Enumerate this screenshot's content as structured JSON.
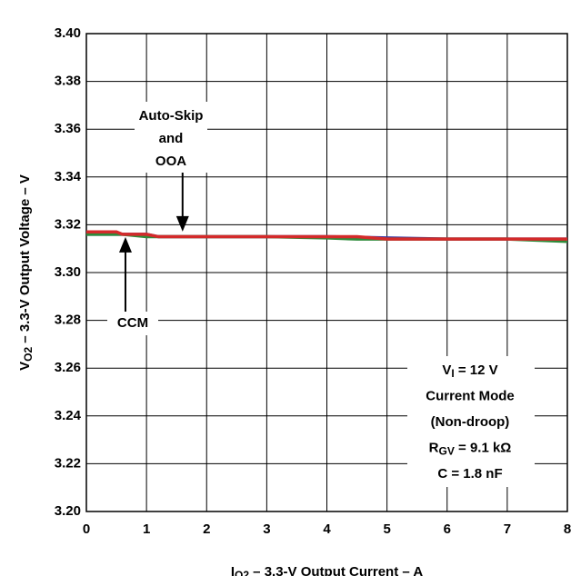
{
  "chart_data": {
    "type": "line",
    "y_label": [
      {
        "text": "V"
      },
      {
        "text": "O2",
        "sub": true
      },
      {
        "text": " – 3.3-V Output Voltage – V"
      }
    ],
    "x_label": [
      {
        "text": "I"
      },
      {
        "text": "O2",
        "sub": true
      },
      {
        "text": " – 3.3-V Output Current – A"
      }
    ],
    "x": [
      0,
      0.5,
      0.6,
      1,
      1.2,
      1.5,
      2,
      3,
      4,
      4.5,
      5,
      6,
      7,
      8
    ],
    "series": [
      {
        "color": "#3a3aa8",
        "values": [
          3.316,
          3.316,
          3.316,
          3.316,
          3.315,
          3.315,
          3.315,
          3.315,
          3.315,
          3.3148,
          3.3145,
          3.314,
          3.314,
          3.314
        ]
      },
      {
        "color": "#2e8b3a",
        "values": [
          3.316,
          3.316,
          3.316,
          3.315,
          3.315,
          3.315,
          3.315,
          3.315,
          3.3145,
          3.314,
          3.314,
          3.314,
          3.314,
          3.313
        ]
      },
      {
        "color": "#d42a2a",
        "values": [
          3.317,
          3.317,
          3.316,
          3.316,
          3.315,
          3.315,
          3.315,
          3.315,
          3.315,
          3.315,
          3.314,
          3.314,
          3.314,
          3.314
        ]
      }
    ],
    "xlim": [
      0,
      8
    ],
    "xticks": [
      0,
      1,
      2,
      3,
      4,
      5,
      6,
      7,
      8
    ],
    "ylim": [
      3.2,
      3.4
    ],
    "yticks": [
      {
        "value": 3.2,
        "label": "3.20"
      },
      {
        "value": 3.22,
        "label": "3.22"
      },
      {
        "value": 3.24,
        "label": "3.24"
      },
      {
        "value": 3.26,
        "label": "3.26"
      },
      {
        "value": 3.28,
        "label": "3.28"
      },
      {
        "value": 3.3,
        "label": "3.30"
      },
      {
        "value": 3.32,
        "label": "3.32"
      },
      {
        "value": 3.34,
        "label": "3.34"
      },
      {
        "value": 3.36,
        "label": "3.36"
      },
      {
        "value": 3.38,
        "label": "3.38"
      },
      {
        "value": 3.4,
        "label": "3.40"
      }
    ],
    "grid": true,
    "annotations": [
      {
        "lines": [
          [
            {
              "text": "Auto-Skip"
            }
          ],
          [
            {
              "text": "and"
            }
          ],
          [
            {
              "text": "OOA"
            }
          ]
        ],
        "x": 1.6,
        "y": 3.316
      },
      {
        "lines": [
          [
            {
              "text": "CCM"
            }
          ]
        ],
        "x": 0.65,
        "y": 3.316
      }
    ],
    "conditions": [
      [
        {
          "text": "V"
        },
        {
          "text": "I",
          "sub": true
        },
        {
          "text": " = 12 V"
        }
      ],
      [
        {
          "text": "Current Mode"
        }
      ],
      [
        {
          "text": "(Non-droop)"
        }
      ],
      [
        {
          "text": "R"
        },
        {
          "text": "GV",
          "sub": true
        },
        {
          "text": " = 9.1 kΩ"
        }
      ],
      [
        {
          "text": "C = 1.8 nF"
        }
      ]
    ]
  }
}
